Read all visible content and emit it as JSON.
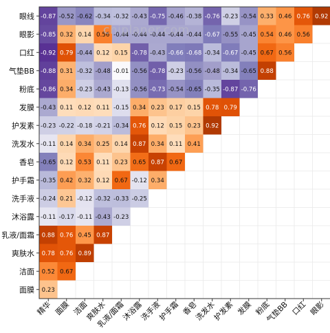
{
  "watermark": "chiplaner.com",
  "chart_data": {
    "type": "heatmap",
    "title": "",
    "xlabel": "",
    "ylabel": "",
    "value_range": [
      -1,
      1
    ],
    "colormap": {
      "negative": "#3f127f",
      "neutral": "#ffffff",
      "positive": "#7f2704",
      "description": "diverging purple (negative) to white to orange-brown (positive)"
    },
    "grid": true,
    "row_labels": [
      "眼线",
      "眼影",
      "口红",
      "气垫BB",
      "粉底",
      "发膜",
      "护发素",
      "洗发水",
      "香皂",
      "护手霜",
      "洗手液",
      "沐浴露",
      "乳液/面霜",
      "爽肤水",
      "洁面",
      "面膜"
    ],
    "col_labels": [
      "精华",
      "面膜",
      "洁面",
      "爽肤水",
      "乳液/面霜",
      "沐浴露",
      "洗手液",
      "护手霜",
      "香皂",
      "洗发水",
      "护发素",
      "发膜",
      "粉底",
      "气垫BB",
      "口红",
      "眼影"
    ],
    "values": [
      [
        -0.87,
        -0.52,
        -0.62,
        -0.34,
        -0.32,
        -0.43,
        -0.75,
        -0.46,
        -0.38,
        -0.76,
        -0.23,
        -0.54,
        0.33,
        0.46,
        0.76,
        0.92
      ],
      [
        -0.85,
        0.32,
        0.14,
        0.56,
        -0.44,
        -0.44,
        -0.44,
        -0.44,
        -0.44,
        -0.67,
        -0.55,
        -0.45,
        0.54,
        0.46,
        0.56
      ],
      [
        -0.92,
        0.79,
        -0.44,
        0.12,
        0.15,
        -0.78,
        -0.43,
        -0.66,
        -0.68,
        -0.34,
        -0.67,
        -0.45,
        0.67,
        0.56
      ],
      [
        -0.88,
        0.31,
        -0.32,
        -0.48,
        -0.01,
        -0.56,
        -0.78,
        -0.23,
        -0.56,
        -0.48,
        -0.34,
        -0.65,
        0.88
      ],
      [
        -0.86,
        0.34,
        -0.23,
        -0.43,
        -0.13,
        -0.56,
        -0.73,
        -0.54,
        -0.65,
        -0.35,
        -0.87,
        -0.76
      ],
      [
        -0.43,
        0.11,
        0.12,
        0.11,
        -0.15,
        0.34,
        0.23,
        0.17,
        0.15,
        0.78,
        0.79
      ],
      [
        -0.23,
        -0.22,
        -0.18,
        -0.21,
        -0.34,
        0.76,
        0.12,
        0.15,
        0.23,
        0.92
      ],
      [
        -0.11,
        0.14,
        0.34,
        0.25,
        0.14,
        0.87,
        0.34,
        0.11,
        0.41
      ],
      [
        -0.65,
        0.12,
        0.53,
        0.11,
        0.23,
        0.65,
        0.87,
        0.67
      ],
      [
        -0.35,
        0.42,
        0.32,
        0.12,
        0.67,
        -0.12,
        0.34
      ],
      [
        -0.24,
        0.21,
        -0.12,
        -0.32,
        -0.33,
        -0.25
      ],
      [
        -0.11,
        -0.17,
        -0.11,
        -0.43,
        -0.23
      ],
      [
        0.88,
        0.76,
        0.45,
        0.87
      ],
      [
        0.78,
        0.76,
        0.89
      ],
      [
        0.52,
        0.67
      ],
      [
        0.23
      ]
    ]
  }
}
